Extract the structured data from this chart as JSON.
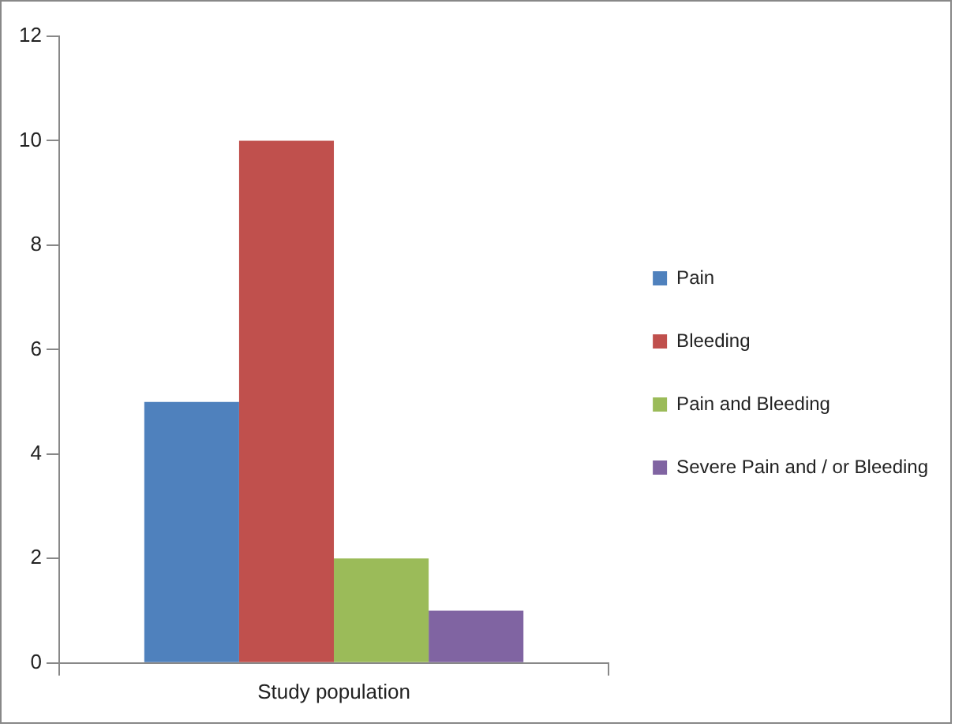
{
  "chart_data": {
    "type": "bar",
    "categories": [
      "Study population"
    ],
    "series": [
      {
        "name": "Pain",
        "color": "#4f81bd",
        "values": [
          5
        ]
      },
      {
        "name": "Bleeding",
        "color": "#c0504d",
        "values": [
          10
        ]
      },
      {
        "name": "Pain and Bleeding",
        "color": "#9bbb59",
        "values": [
          2
        ]
      },
      {
        "name": "Severe Pain and / or Bleeding",
        "color": "#8064a2",
        "values": [
          1
        ]
      }
    ],
    "ylim": [
      0,
      12
    ],
    "yticks": [
      0,
      2,
      4,
      6,
      8,
      10,
      12
    ],
    "grid": false,
    "legend": "right"
  }
}
